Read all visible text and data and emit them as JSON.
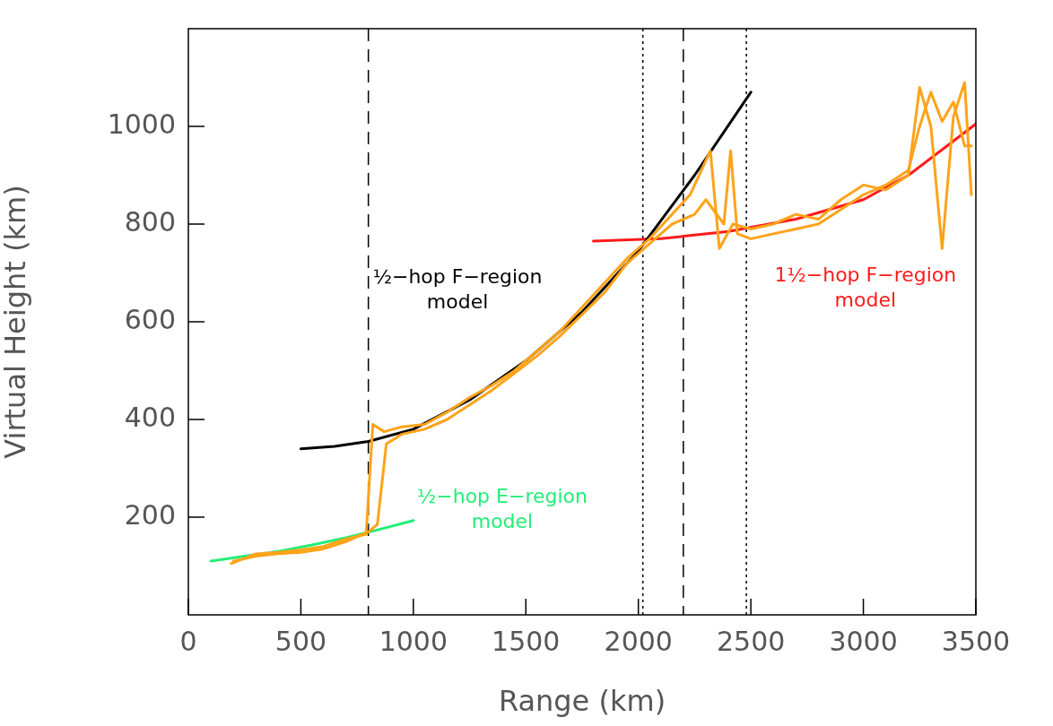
{
  "chart_data": {
    "type": "line",
    "xlabel": "Range (km)",
    "ylabel": "Virtual Height (km)",
    "xlim": [
      0,
      3500
    ],
    "ylim": [
      0,
      1200
    ],
    "xticks": [
      0,
      500,
      1000,
      1500,
      2000,
      2500,
      3000,
      3500
    ],
    "yticks": [
      200,
      400,
      600,
      800,
      1000
    ],
    "grid": false,
    "legend": false,
    "marker": "none",
    "line_style": "solid",
    "series": [
      {
        "color": "#ffa31a",
        "x": [
          190,
          300,
          400,
          500,
          600,
          700,
          790,
          820,
          870,
          950,
          1050,
          1150,
          1250,
          1350,
          1450,
          1550,
          1650,
          1750,
          1850,
          1950,
          2050,
          2150,
          2230,
          2320,
          2360,
          2420,
          2500,
          2600,
          2700,
          2800,
          2900,
          3000,
          3100,
          3200,
          3250,
          3300,
          3350,
          3400,
          3450,
          3480
        ],
        "values": [
          105,
          125,
          128,
          133,
          140,
          155,
          165,
          390,
          375,
          385,
          390,
          415,
          445,
          470,
          500,
          540,
          580,
          630,
          680,
          730,
          770,
          820,
          860,
          950,
          750,
          800,
          790,
          800,
          820,
          810,
          850,
          880,
          870,
          900,
          1080,
          1000,
          750,
          1020,
          1090,
          860
        ]
      },
      {
        "color": "#ffa31a",
        "x": [
          200,
          300,
          400,
          500,
          600,
          700,
          800,
          840,
          880,
          950,
          1050,
          1150,
          1250,
          1350,
          1450,
          1550,
          1650,
          1750,
          1850,
          1950,
          2050,
          2150,
          2250,
          2300,
          2380,
          2410,
          2440,
          2500,
          2600,
          2700,
          2800,
          2900,
          3000,
          3100,
          3200,
          3250,
          3300,
          3350,
          3400,
          3450,
          3480
        ],
        "values": [
          110,
          120,
          125,
          128,
          135,
          150,
          170,
          185,
          350,
          370,
          380,
          400,
          430,
          460,
          495,
          530,
          570,
          615,
          660,
          720,
          760,
          800,
          820,
          850,
          800,
          950,
          780,
          770,
          780,
          790,
          800,
          830,
          860,
          880,
          910,
          1000,
          1070,
          1010,
          1050,
          960,
          960
        ]
      },
      {
        "name": "½−hop E−region model",
        "color": "#22ee77",
        "x": [
          100,
          250,
          400,
          550,
          700,
          850,
          1000
        ],
        "values": [
          110,
          120,
          130,
          143,
          158,
          175,
          193
        ]
      },
      {
        "name": "½−hop F−region model",
        "color": "#000000",
        "x": [
          500,
          650,
          800,
          1000,
          1250,
          1500,
          1750,
          2000,
          2250,
          2500
        ],
        "values": [
          340,
          345,
          355,
          380,
          440,
          520,
          620,
          745,
          900,
          1070
        ]
      },
      {
        "name": "1½−hop F−region model",
        "color": "#ff1a1a",
        "x": [
          1800,
          2100,
          2400,
          2700,
          3000,
          3200,
          3500
        ],
        "values": [
          765,
          770,
          785,
          810,
          850,
          900,
          1005
        ]
      }
    ],
    "ref_lines": [
      {
        "axis": "x",
        "value": 800,
        "line_style": "dashed",
        "color": "#000000"
      },
      {
        "axis": "x",
        "value": 2200,
        "line_style": "dashed",
        "color": "#000000"
      },
      {
        "axis": "x",
        "value": 2020,
        "line_style": "dotted",
        "color": "#000000"
      },
      {
        "axis": "x",
        "value": 2480,
        "line_style": "dotted",
        "color": "#000000"
      }
    ]
  }
}
